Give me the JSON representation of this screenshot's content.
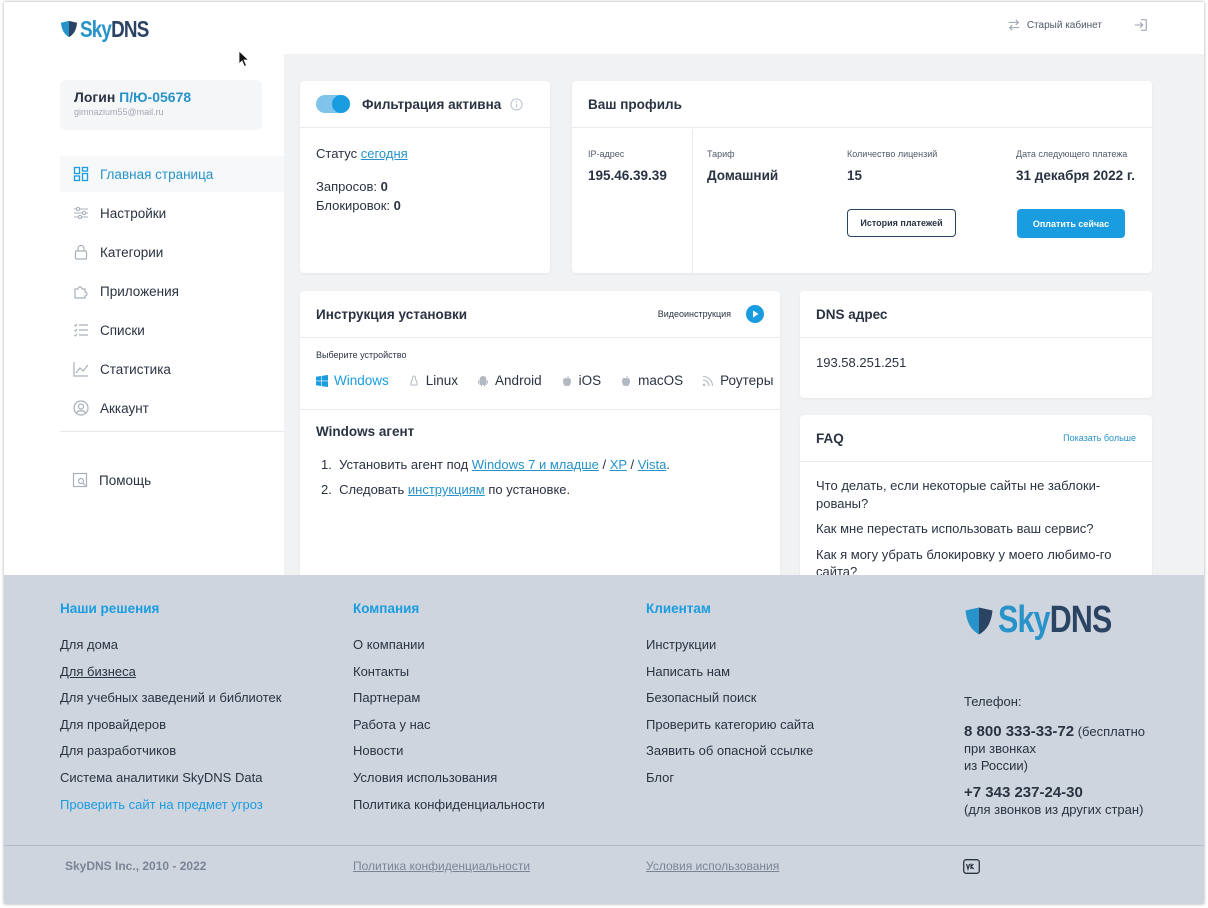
{
  "header": {
    "logo_text_a": "Sky",
    "logo_text_b": "DNS",
    "old_cabinet_label": "Старый кабинет"
  },
  "sidebar": {
    "login_label": "Логин",
    "login_id": "П/Ю-05678",
    "email": "gimnazium55@mail.ru",
    "items": [
      {
        "label": "Главная страница",
        "icon": "dashboard-icon",
        "active": true
      },
      {
        "label": "Настройки",
        "icon": "sliders-icon"
      },
      {
        "label": "Категории",
        "icon": "lock-icon"
      },
      {
        "label": "Приложения",
        "icon": "puzzle-icon"
      },
      {
        "label": "Списки",
        "icon": "list-icon"
      },
      {
        "label": "Статистика",
        "icon": "chart-icon"
      },
      {
        "label": "Аккаунт",
        "icon": "user-circle-icon"
      }
    ],
    "help_label": "Помощь"
  },
  "filter": {
    "title": "Фильтрация активна",
    "status_label": "Статус",
    "status_link": "сегодня",
    "requests_label": "Запросов:",
    "requests_value": "0",
    "blocks_label": "Блокировок:",
    "blocks_value": "0",
    "toggle_on": true
  },
  "profile": {
    "title": "Ваш профиль",
    "ip_label": "IP-адрес",
    "ip_value": "195.46.39.39",
    "tariff_label": "Тариф",
    "tariff_value": "Домашний",
    "licenses_label": "Количество лицензий",
    "licenses_value": "15",
    "next_payment_label": "Дата следующего платежа",
    "next_payment_value": "31 декабря 2022 г.",
    "history_button": "История платежей",
    "pay_button": "Оплатить сейчас"
  },
  "install": {
    "title": "Инструкция установки",
    "video_label": "Видеоинструкция",
    "device_label": "Выберите устройство",
    "devices": [
      "Windows",
      "Linux",
      "Android",
      "iOS",
      "macOS",
      "Роутеры"
    ],
    "agent_title": "Windows агент",
    "step1_prefix": "Установить агент под",
    "step1_link1": "Windows 7 и младше",
    "step1_sep1": "/",
    "step1_link2": "XP",
    "step1_sep2": "/",
    "step1_link3": "Vista",
    "step1_suffix": ".",
    "step2_prefix": "Следовать",
    "step2_link": "инструкциям",
    "step2_suffix": "по установке."
  },
  "dns": {
    "title": "DNS адрес",
    "value": "193.58.251.251"
  },
  "faq": {
    "title": "FAQ",
    "more_label": "Показать больше",
    "items": [
      "Что делать, если некоторые сайты не заблоки-рованы?",
      "Как мне перестать использовать ваш сервис?",
      "Как я могу убрать блокировку у моего любимо-го сайта?"
    ]
  },
  "footer": {
    "col1_title": "Наши решения",
    "col1_links": [
      "Для дома",
      "Для бизнеса",
      "Для учебных заведений и библиотек",
      "Для провайдеров",
      "Для разработчиков",
      "Система аналитики SkyDNS Data",
      "Проверить сайт на предмет угроз"
    ],
    "col2_title": "Компания",
    "col2_links": [
      "О компании",
      "Контакты",
      "Партнерам",
      "Работа у нас",
      "Новости",
      "Условия использования",
      "Политика конфиденциальности"
    ],
    "col3_title": "Клиентам",
    "col3_links": [
      "Инструкции",
      "Написать нам",
      "Безопасный поиск",
      "Проверить категорию сайта",
      "Заявить об опасной ссылке",
      "Блог"
    ],
    "phone_label": "Телефон:",
    "phone1": "8 800 333-33-72",
    "phone1_note_a": "(бесплатно",
    "phone1_note_b": "при звонках",
    "phone1_note_c": "из России)",
    "phone2": "+7 343 237-24-30",
    "phone2_note": "(для звонков из других стран)",
    "copyright": "SkyDNS Inc., 2010 - 2022",
    "privacy_link": "Политика конфиденциальности",
    "terms_link": "Условия использования",
    "vk_label": "vk"
  },
  "colors": {
    "accent": "#1a9ce0",
    "link": "#2793c9",
    "dark": "#2b4463",
    "footer_bg": "#cfd5df"
  }
}
